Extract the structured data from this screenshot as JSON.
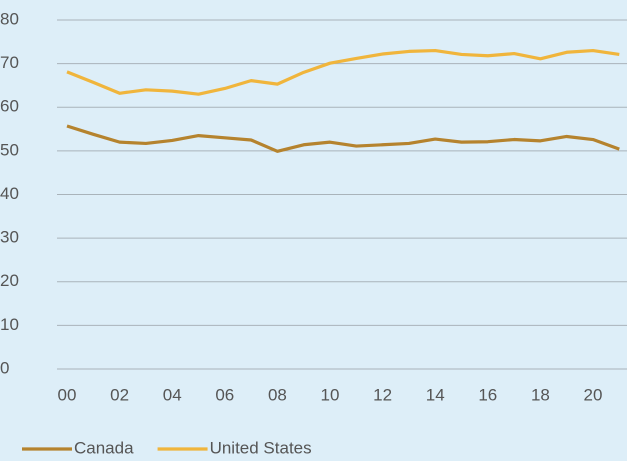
{
  "chart_data": {
    "type": "line",
    "categories": [
      "00",
      null,
      "02",
      null,
      "04",
      null,
      "06",
      null,
      "08",
      null,
      "10",
      null,
      "12",
      null,
      "14",
      null,
      "16",
      null,
      "18",
      null,
      "20",
      null
    ],
    "series": [
      {
        "name": "Canada",
        "color": "#b5832e",
        "values": [
          55.7,
          53.8,
          52.0,
          51.7,
          52.4,
          53.5,
          53.0,
          52.5,
          49.9,
          51.4,
          52.0,
          51.1,
          51.4,
          51.7,
          52.7,
          52.0,
          52.1,
          52.6,
          52.3,
          53.3,
          52.6,
          50.4
        ]
      },
      {
        "name": "United States",
        "color": "#f0b53c",
        "values": [
          68.1,
          65.7,
          63.2,
          64.0,
          63.7,
          63.0,
          64.3,
          66.1,
          65.3,
          68.0,
          70.1,
          71.2,
          72.2,
          72.8,
          73.0,
          72.1,
          71.8,
          72.3,
          71.1,
          72.6,
          73.0,
          72.1
        ]
      }
    ],
    "ylim": [
      0,
      80
    ],
    "yticks": [
      0,
      10,
      20,
      30,
      40,
      50,
      60,
      70,
      80
    ],
    "grid": true,
    "legend": "bottom-left"
  }
}
